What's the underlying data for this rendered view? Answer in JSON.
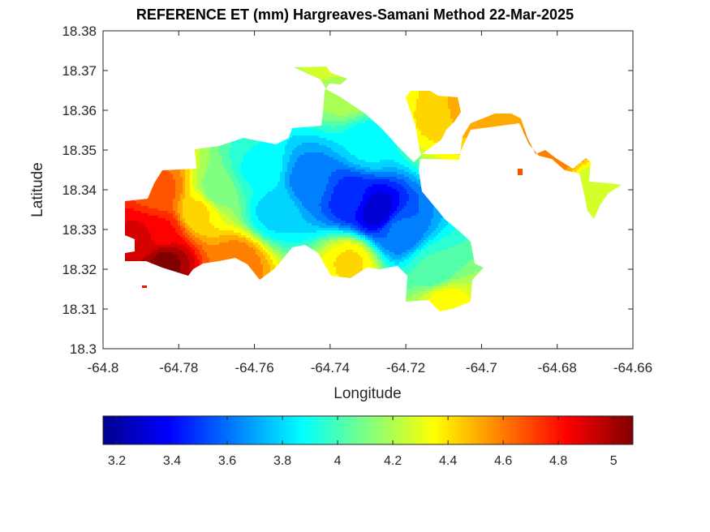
{
  "title": "REFERENCE ET (mm) Hargreaves-Samani Method  22-Mar-2025",
  "axes": {
    "xlabel": "Longitude",
    "ylabel": "Latitude",
    "xlim": [
      -64.8,
      -64.66
    ],
    "ylim": [
      18.3,
      18.38
    ],
    "xticks": [
      "-64.8",
      "-64.78",
      "-64.76",
      "-64.74",
      "-64.72",
      "-64.7",
      "-64.68",
      "-64.66"
    ],
    "yticks": [
      "18.3",
      "18.31",
      "18.32",
      "18.33",
      "18.34",
      "18.35",
      "18.36",
      "18.37",
      "18.38"
    ]
  },
  "colorbar": {
    "colormap": "jet",
    "clim": [
      3.15,
      5.07
    ],
    "ticks": [
      "3.2",
      "3.4",
      "3.6",
      "3.8",
      "4",
      "4.2",
      "4.4",
      "4.6",
      "4.8",
      "5"
    ],
    "placement": "bottom"
  },
  "chart_data": {
    "type": "heatmap",
    "title": "REFERENCE ET (mm) Hargreaves-Samani Method  22-Mar-2025",
    "xlabel": "Longitude",
    "ylabel": "Latitude",
    "xlim": [
      -64.8,
      -64.66
    ],
    "ylim": [
      18.3,
      18.38
    ],
    "clim": [
      3.15,
      5.07
    ],
    "colormap": "jet",
    "grid": false,
    "value_samples": [
      {
        "lon": -64.728,
        "lat": 18.335,
        "et": 3.3
      },
      {
        "lon": -64.735,
        "lat": 18.338,
        "et": 3.45
      },
      {
        "lon": -64.745,
        "lat": 18.342,
        "et": 3.6
      },
      {
        "lon": -64.722,
        "lat": 18.33,
        "et": 3.6
      },
      {
        "lon": -64.73,
        "lat": 18.352,
        "et": 3.85
      },
      {
        "lon": -64.755,
        "lat": 18.335,
        "et": 3.8
      },
      {
        "lon": -64.76,
        "lat": 18.345,
        "et": 3.9
      },
      {
        "lon": -64.77,
        "lat": 18.34,
        "et": 4.1
      },
      {
        "lon": -64.735,
        "lat": 18.365,
        "et": 4.2
      },
      {
        "lon": -64.713,
        "lat": 18.32,
        "et": 4.0
      },
      {
        "lon": -64.71,
        "lat": 18.312,
        "et": 4.35
      },
      {
        "lon": -64.735,
        "lat": 18.322,
        "et": 4.4
      },
      {
        "lon": -64.713,
        "lat": 18.358,
        "et": 4.4
      },
      {
        "lon": -64.705,
        "lat": 18.36,
        "et": 4.5
      },
      {
        "lon": -64.73,
        "lat": 18.372,
        "et": 4.55
      },
      {
        "lon": -64.68,
        "lat": 18.35,
        "et": 4.6
      },
      {
        "lon": -64.672,
        "lat": 18.34,
        "et": 4.25
      },
      {
        "lon": -64.775,
        "lat": 18.335,
        "et": 4.4
      },
      {
        "lon": -64.765,
        "lat": 18.322,
        "et": 4.6
      },
      {
        "lon": -64.785,
        "lat": 18.34,
        "et": 4.65
      },
      {
        "lon": -64.785,
        "lat": 18.33,
        "et": 4.8
      },
      {
        "lon": -64.79,
        "lat": 18.328,
        "et": 4.9
      },
      {
        "lon": -64.784,
        "lat": 18.322,
        "et": 5.05
      }
    ]
  }
}
